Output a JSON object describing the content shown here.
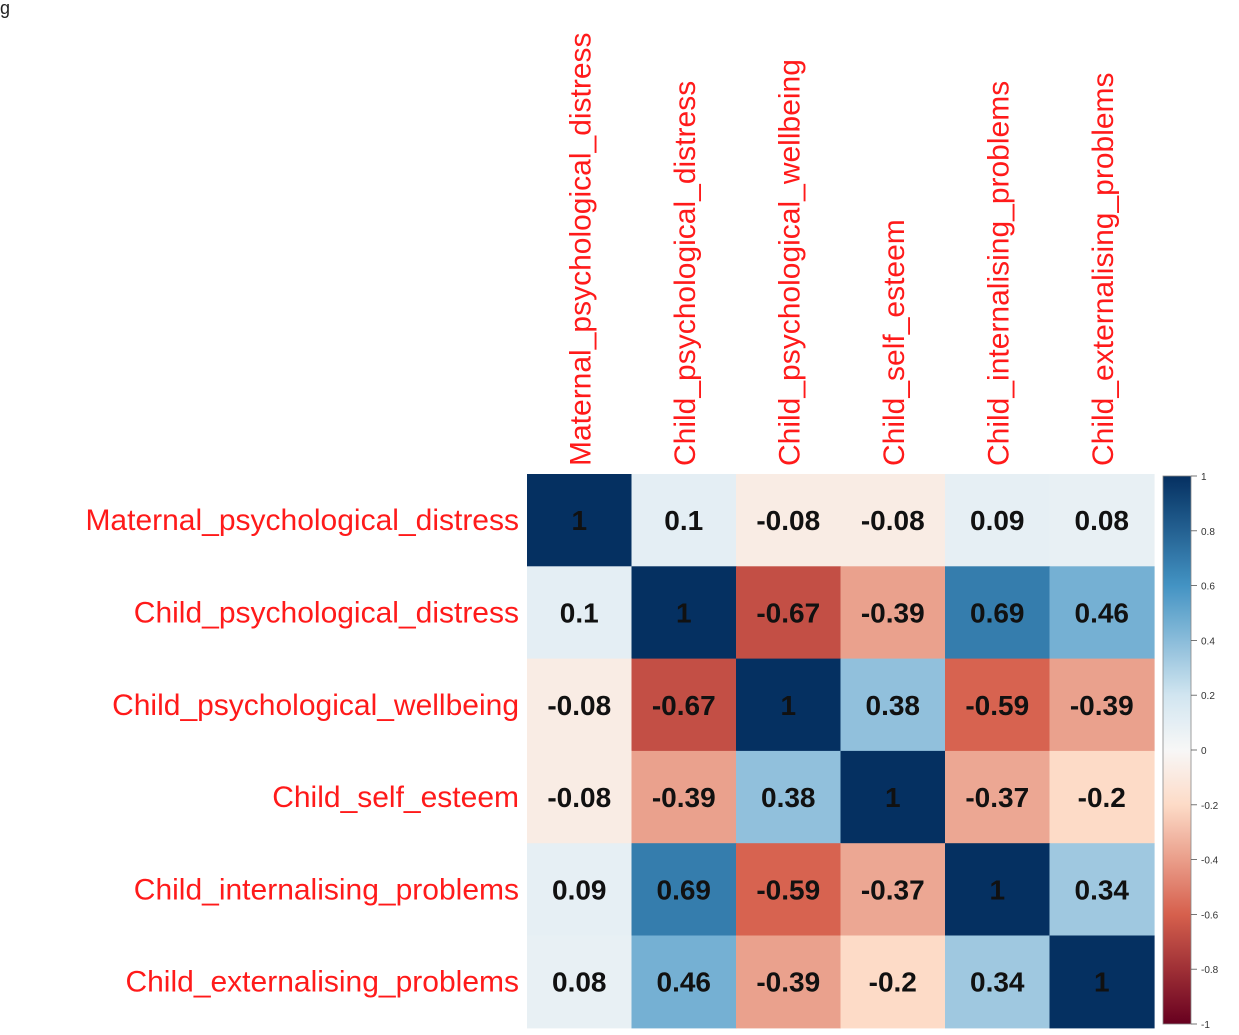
{
  "figure_label": "g",
  "chart_data": {
    "type": "heatmap",
    "title": "",
    "variables": [
      "Maternal_psychological_distress",
      "Child_psychological_distress",
      "Child_psychological_wellbeing",
      "Child_self_esteem",
      "Child_internalising_problems",
      "Child_externalising_problems"
    ],
    "matrix": [
      [
        1,
        0.1,
        -0.08,
        -0.08,
        0.09,
        0.08
      ],
      [
        0.1,
        1,
        -0.67,
        -0.39,
        0.69,
        0.46
      ],
      [
        -0.08,
        -0.67,
        1,
        0.38,
        -0.59,
        -0.39
      ],
      [
        -0.08,
        -0.39,
        0.38,
        1,
        -0.37,
        -0.2
      ],
      [
        0.09,
        0.69,
        -0.59,
        -0.37,
        1,
        0.34
      ],
      [
        0.08,
        0.46,
        -0.39,
        -0.2,
        0.34,
        1
      ]
    ],
    "colorbar": {
      "range": [
        -1,
        1
      ],
      "ticks": [
        "1",
        "0.8",
        "0.6",
        "0.4",
        "0.2",
        "0",
        "-0.2",
        "-0.4",
        "-0.6",
        "-0.8",
        "-1"
      ],
      "tick_values": [
        1,
        0.8,
        0.6,
        0.4,
        0.2,
        0,
        -0.2,
        -0.4,
        -0.6,
        -0.8,
        -1
      ],
      "colors": {
        "neg_strong": "#67001F",
        "neg_mid": "#D6604D",
        "neg_light": "#FDDBC7",
        "zero": "#F7F7F7",
        "pos_light": "#D1E5F0",
        "pos_mid": "#4393C3",
        "pos_strong": "#053061"
      }
    },
    "label_color": "#FF1A1A"
  }
}
